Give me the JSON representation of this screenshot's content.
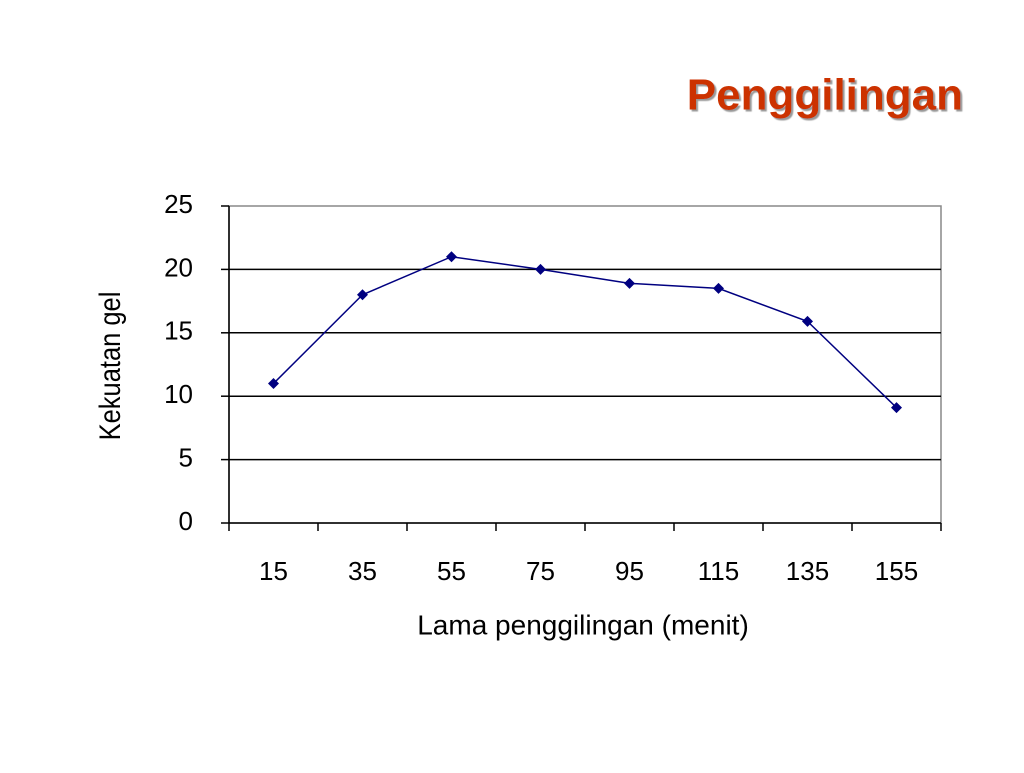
{
  "chart_data": {
    "type": "line",
    "title": "Penggilingan",
    "xlabel": "Lama penggilingan (menit)",
    "ylabel": "Kekuatan gel",
    "categories": [
      "15",
      "35",
      "55",
      "75",
      "95",
      "115",
      "135",
      "155"
    ],
    "series": [
      {
        "name": "Kekuatan gel",
        "color": "#000080",
        "values": [
          11,
          18,
          21,
          20,
          18.9,
          18.5,
          15.9,
          9.1
        ]
      }
    ],
    "ylim": [
      0,
      25
    ],
    "yticks": [
      0,
      5,
      10,
      15,
      20,
      25
    ],
    "grid": true
  }
}
